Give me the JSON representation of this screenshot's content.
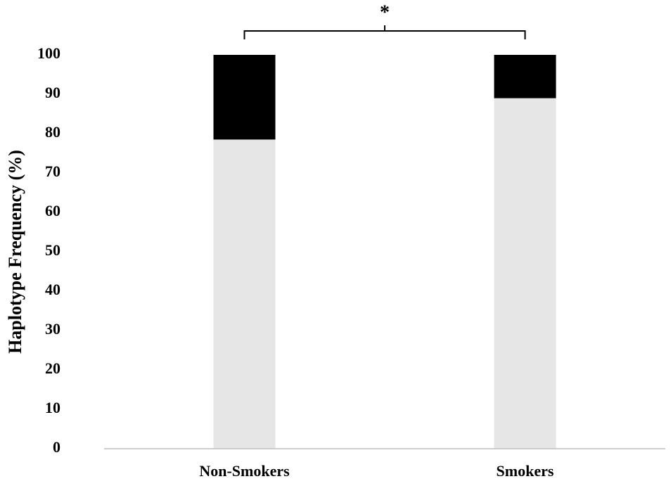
{
  "chart_data": {
    "type": "stacked-bar",
    "y_label": "Haplotype Frequency (%)",
    "annotation": "*",
    "categories": [
      "Non-Smokers",
      "Smokers"
    ],
    "series": [
      {
        "color": "#e6e6e6",
        "values": [
          78.5,
          89
        ]
      },
      {
        "color": "#000000",
        "values": [
          21.5,
          11
        ]
      }
    ],
    "ylim": [
      0,
      100
    ],
    "yticks": [
      0,
      10,
      20,
      30,
      40,
      50,
      60,
      70,
      80,
      90,
      100
    ],
    "grid": false
  }
}
